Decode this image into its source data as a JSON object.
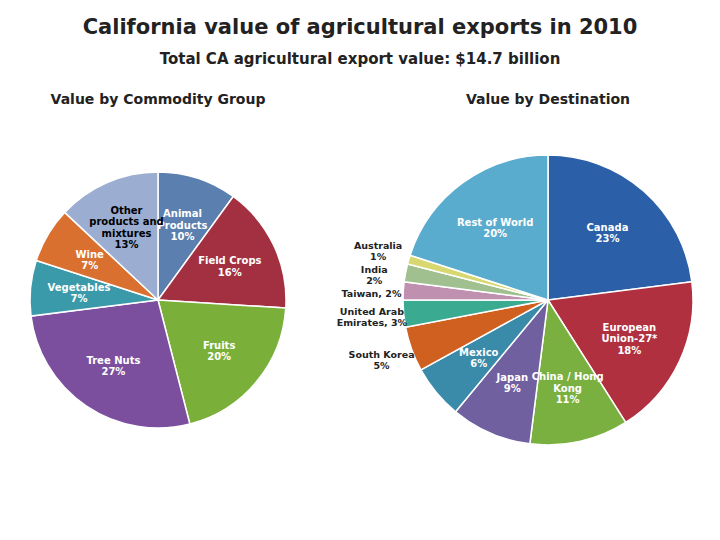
{
  "title": "California value of agricultural exports in 2010",
  "subtitle": "Total CA agricultural export value: $14.7 billion",
  "chart_data": [
    {
      "type": "pie",
      "title": "Value by Commodity Group",
      "categories": [
        "Animal\nProducts\n10%",
        "Field Crops\n16%",
        "Fruits\n20%",
        "Tree Nuts\n27%",
        "Vegetables\n7%",
        "Wine\n7%",
        "Other\nproducts and\nmixtures\n13%"
      ],
      "values": [
        10,
        16,
        20,
        27,
        7,
        7,
        13
      ],
      "colors": [
        "#5b7faf",
        "#a33040",
        "#7ab03a",
        "#7b4f9e",
        "#3a9aaa",
        "#d97030",
        "#9badd0"
      ]
    },
    {
      "type": "pie",
      "title": "Value by Destination",
      "categories": [
        "Canada\n23%",
        "European\nUnion-27*\n18%",
        "China / Hong\nKong\n11%",
        "Japan\n9%",
        "Mexico\n6%",
        "South Korea\n5%",
        "United Arab\nEmirates, 3%",
        "Taiwan, 2%",
        "India\n2%",
        "Australia\n1%",
        "Rest of World\n20%"
      ],
      "values": [
        23,
        18,
        11,
        9,
        6,
        5,
        3,
        2,
        2,
        1,
        20
      ],
      "colors": [
        "#2b5fa8",
        "#b03040",
        "#7ab040",
        "#7060a0",
        "#3a8aaa",
        "#d06020",
        "#3aaa90",
        "#c090b0",
        "#a0c090",
        "#d8d870",
        "#5aaccf"
      ]
    }
  ]
}
